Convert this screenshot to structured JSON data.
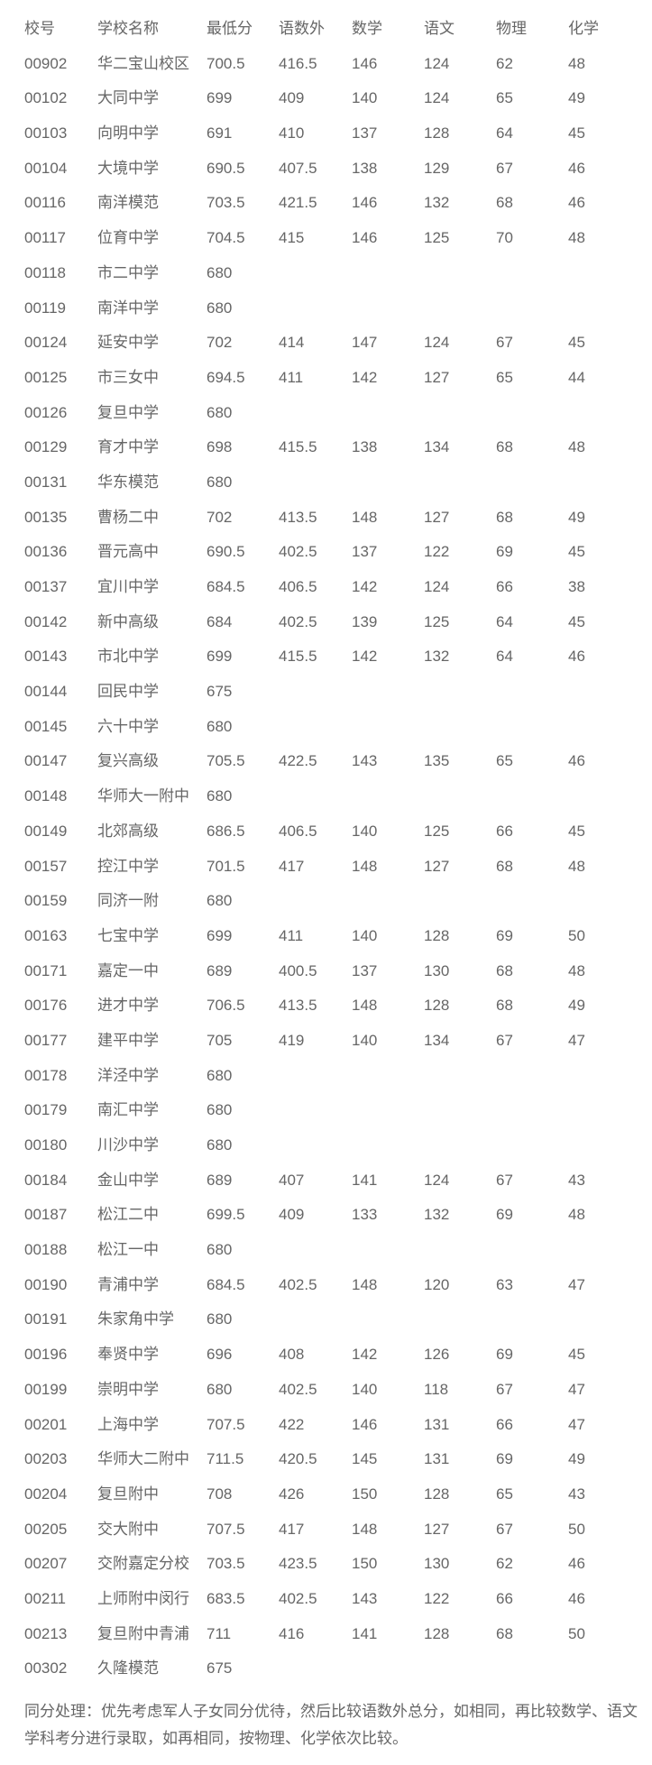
{
  "table": {
    "headers": [
      "校号",
      "学校名称",
      "最低分",
      "语数外",
      "数学",
      "语文",
      "物理",
      "化学"
    ],
    "rows": [
      [
        "00902",
        "华二宝山校区",
        "700.5",
        "416.5",
        "146",
        "124",
        "62",
        "48"
      ],
      [
        "00102",
        "大同中学",
        "699",
        "409",
        "140",
        "124",
        "65",
        "49"
      ],
      [
        "00103",
        "向明中学",
        "691",
        "410",
        "137",
        "128",
        "64",
        "45"
      ],
      [
        "00104",
        "大境中学",
        "690.5",
        "407.5",
        "138",
        "129",
        "67",
        "46"
      ],
      [
        "00116",
        "南洋模范",
        "703.5",
        "421.5",
        "146",
        "132",
        "68",
        "46"
      ],
      [
        "00117",
        "位育中学",
        "704.5",
        "415",
        "146",
        "125",
        "70",
        "48"
      ],
      [
        "00118",
        "市二中学",
        "680",
        "",
        "",
        "",
        "",
        ""
      ],
      [
        "00119",
        "南洋中学",
        "680",
        "",
        "",
        "",
        "",
        ""
      ],
      [
        "00124",
        "延安中学",
        "702",
        "414",
        "147",
        "124",
        "67",
        "45"
      ],
      [
        "00125",
        "市三女中",
        "694.5",
        "411",
        "142",
        "127",
        "65",
        "44"
      ],
      [
        "00126",
        "复旦中学",
        "680",
        "",
        "",
        "",
        "",
        ""
      ],
      [
        "00129",
        "育才中学",
        "698",
        "415.5",
        "138",
        "134",
        "68",
        "48"
      ],
      [
        "00131",
        "华东模范",
        "680",
        "",
        "",
        "",
        "",
        ""
      ],
      [
        "00135",
        "曹杨二中",
        "702",
        "413.5",
        "148",
        "127",
        "68",
        "49"
      ],
      [
        "00136",
        "晋元高中",
        "690.5",
        "402.5",
        "137",
        "122",
        "69",
        "45"
      ],
      [
        "00137",
        "宜川中学",
        "684.5",
        "406.5",
        "142",
        "124",
        "66",
        "38"
      ],
      [
        "00142",
        "新中高级",
        "684",
        "402.5",
        "139",
        "125",
        "64",
        "45"
      ],
      [
        "00143",
        "市北中学",
        "699",
        "415.5",
        "142",
        "132",
        "64",
        "46"
      ],
      [
        "00144",
        "回民中学",
        "675",
        "",
        "",
        "",
        "",
        ""
      ],
      [
        "00145",
        "六十中学",
        "680",
        "",
        "",
        "",
        "",
        ""
      ],
      [
        "00147",
        "复兴高级",
        "705.5",
        "422.5",
        "143",
        "135",
        "65",
        "46"
      ],
      [
        "00148",
        "华师大一附中",
        "680",
        "",
        "",
        "",
        "",
        ""
      ],
      [
        "00149",
        "北郊高级",
        "686.5",
        "406.5",
        "140",
        "125",
        "66",
        "45"
      ],
      [
        "00157",
        "控江中学",
        "701.5",
        "417",
        "148",
        "127",
        "68",
        "48"
      ],
      [
        "00159",
        "同济一附",
        "680",
        "",
        "",
        "",
        "",
        ""
      ],
      [
        "00163",
        "七宝中学",
        "699",
        "411",
        "140",
        "128",
        "69",
        "50"
      ],
      [
        "00171",
        "嘉定一中",
        "689",
        "400.5",
        "137",
        "130",
        "68",
        "48"
      ],
      [
        "00176",
        "进才中学",
        "706.5",
        "413.5",
        "148",
        "128",
        "68",
        "49"
      ],
      [
        "00177",
        "建平中学",
        "705",
        "419",
        "140",
        "134",
        "67",
        "47"
      ],
      [
        "00178",
        "洋泾中学",
        "680",
        "",
        "",
        "",
        "",
        ""
      ],
      [
        "00179",
        "南汇中学",
        "680",
        "",
        "",
        "",
        "",
        ""
      ],
      [
        "00180",
        "川沙中学",
        "680",
        "",
        "",
        "",
        "",
        ""
      ],
      [
        "00184",
        "金山中学",
        "689",
        "407",
        "141",
        "124",
        "67",
        "43"
      ],
      [
        "00187",
        "松江二中",
        "699.5",
        "409",
        "133",
        "132",
        "69",
        "48"
      ],
      [
        "00188",
        "松江一中",
        "680",
        "",
        "",
        "",
        "",
        ""
      ],
      [
        "00190",
        "青浦中学",
        "684.5",
        "402.5",
        "148",
        "120",
        "63",
        "47"
      ],
      [
        "00191",
        "朱家角中学",
        "680",
        "",
        "",
        "",
        "",
        ""
      ],
      [
        "00196",
        "奉贤中学",
        "696",
        "408",
        "142",
        "126",
        "69",
        "45"
      ],
      [
        "00199",
        "崇明中学",
        "680",
        "402.5",
        "140",
        "118",
        "67",
        "47"
      ],
      [
        "00201",
        "上海中学",
        "707.5",
        "422",
        "146",
        "131",
        "66",
        "47"
      ],
      [
        "00203",
        "华师大二附中",
        "711.5",
        "420.5",
        "145",
        "131",
        "69",
        "49"
      ],
      [
        "00204",
        "复旦附中",
        "708",
        "426",
        "150",
        "128",
        "65",
        "43"
      ],
      [
        "00205",
        "交大附中",
        "707.5",
        "417",
        "148",
        "127",
        "67",
        "50"
      ],
      [
        "00207",
        "交附嘉定分校",
        "703.5",
        "423.5",
        "150",
        "130",
        "62",
        "46"
      ],
      [
        "00211",
        "上师附中闵行",
        "683.5",
        "402.5",
        "143",
        "122",
        "66",
        "46"
      ],
      [
        "00213",
        "复旦附中青浦",
        "711",
        "416",
        "141",
        "128",
        "68",
        "50"
      ],
      [
        "00302",
        "久隆模范",
        "675",
        "",
        "",
        "",
        "",
        ""
      ]
    ]
  },
  "note": "同分处理：优先考虑军人子女同分优待，然后比较语数外总分，如相同，再比较数学、语文学科考分进行录取，如再相同，按物理、化学依次比较。"
}
